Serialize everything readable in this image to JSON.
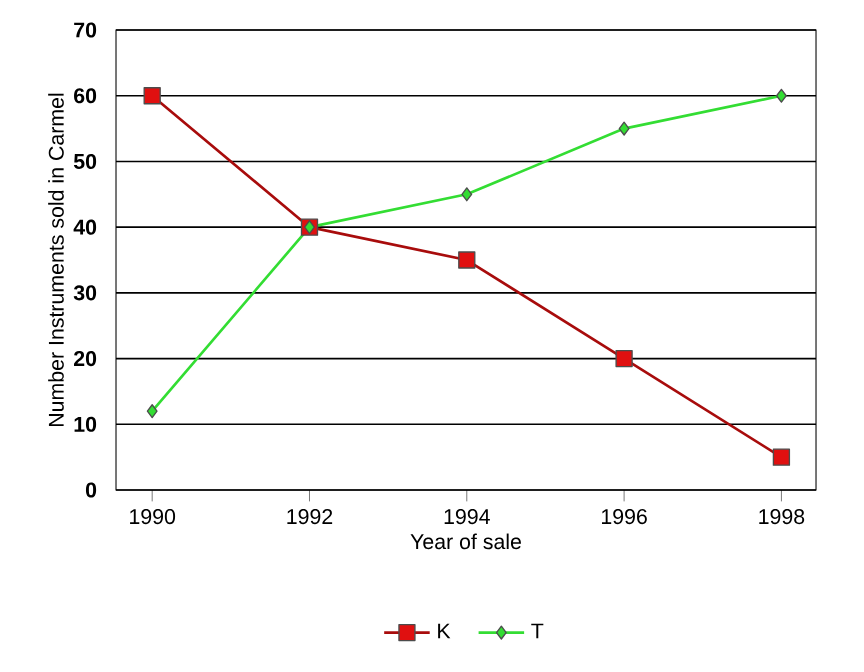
{
  "chart_data": {
    "type": "line",
    "xlabel": "Year of sale",
    "ylabel": "Number Instruments sold in Carmel",
    "categories": [
      "1990",
      "1992",
      "1994",
      "1996",
      "1998"
    ],
    "series": [
      {
        "name": "K",
        "color": "#e01010",
        "marker": "square",
        "values": [
          60,
          40,
          35,
          20,
          5
        ]
      },
      {
        "name": "T",
        "color": "#33dd33",
        "marker": "diamond",
        "values": [
          12,
          40,
          45,
          55,
          60
        ]
      }
    ],
    "ylim": [
      0,
      70
    ],
    "yticks": [
      0,
      10,
      20,
      30,
      40,
      50,
      60,
      70
    ],
    "grid": "y",
    "legend": "bottom"
  }
}
